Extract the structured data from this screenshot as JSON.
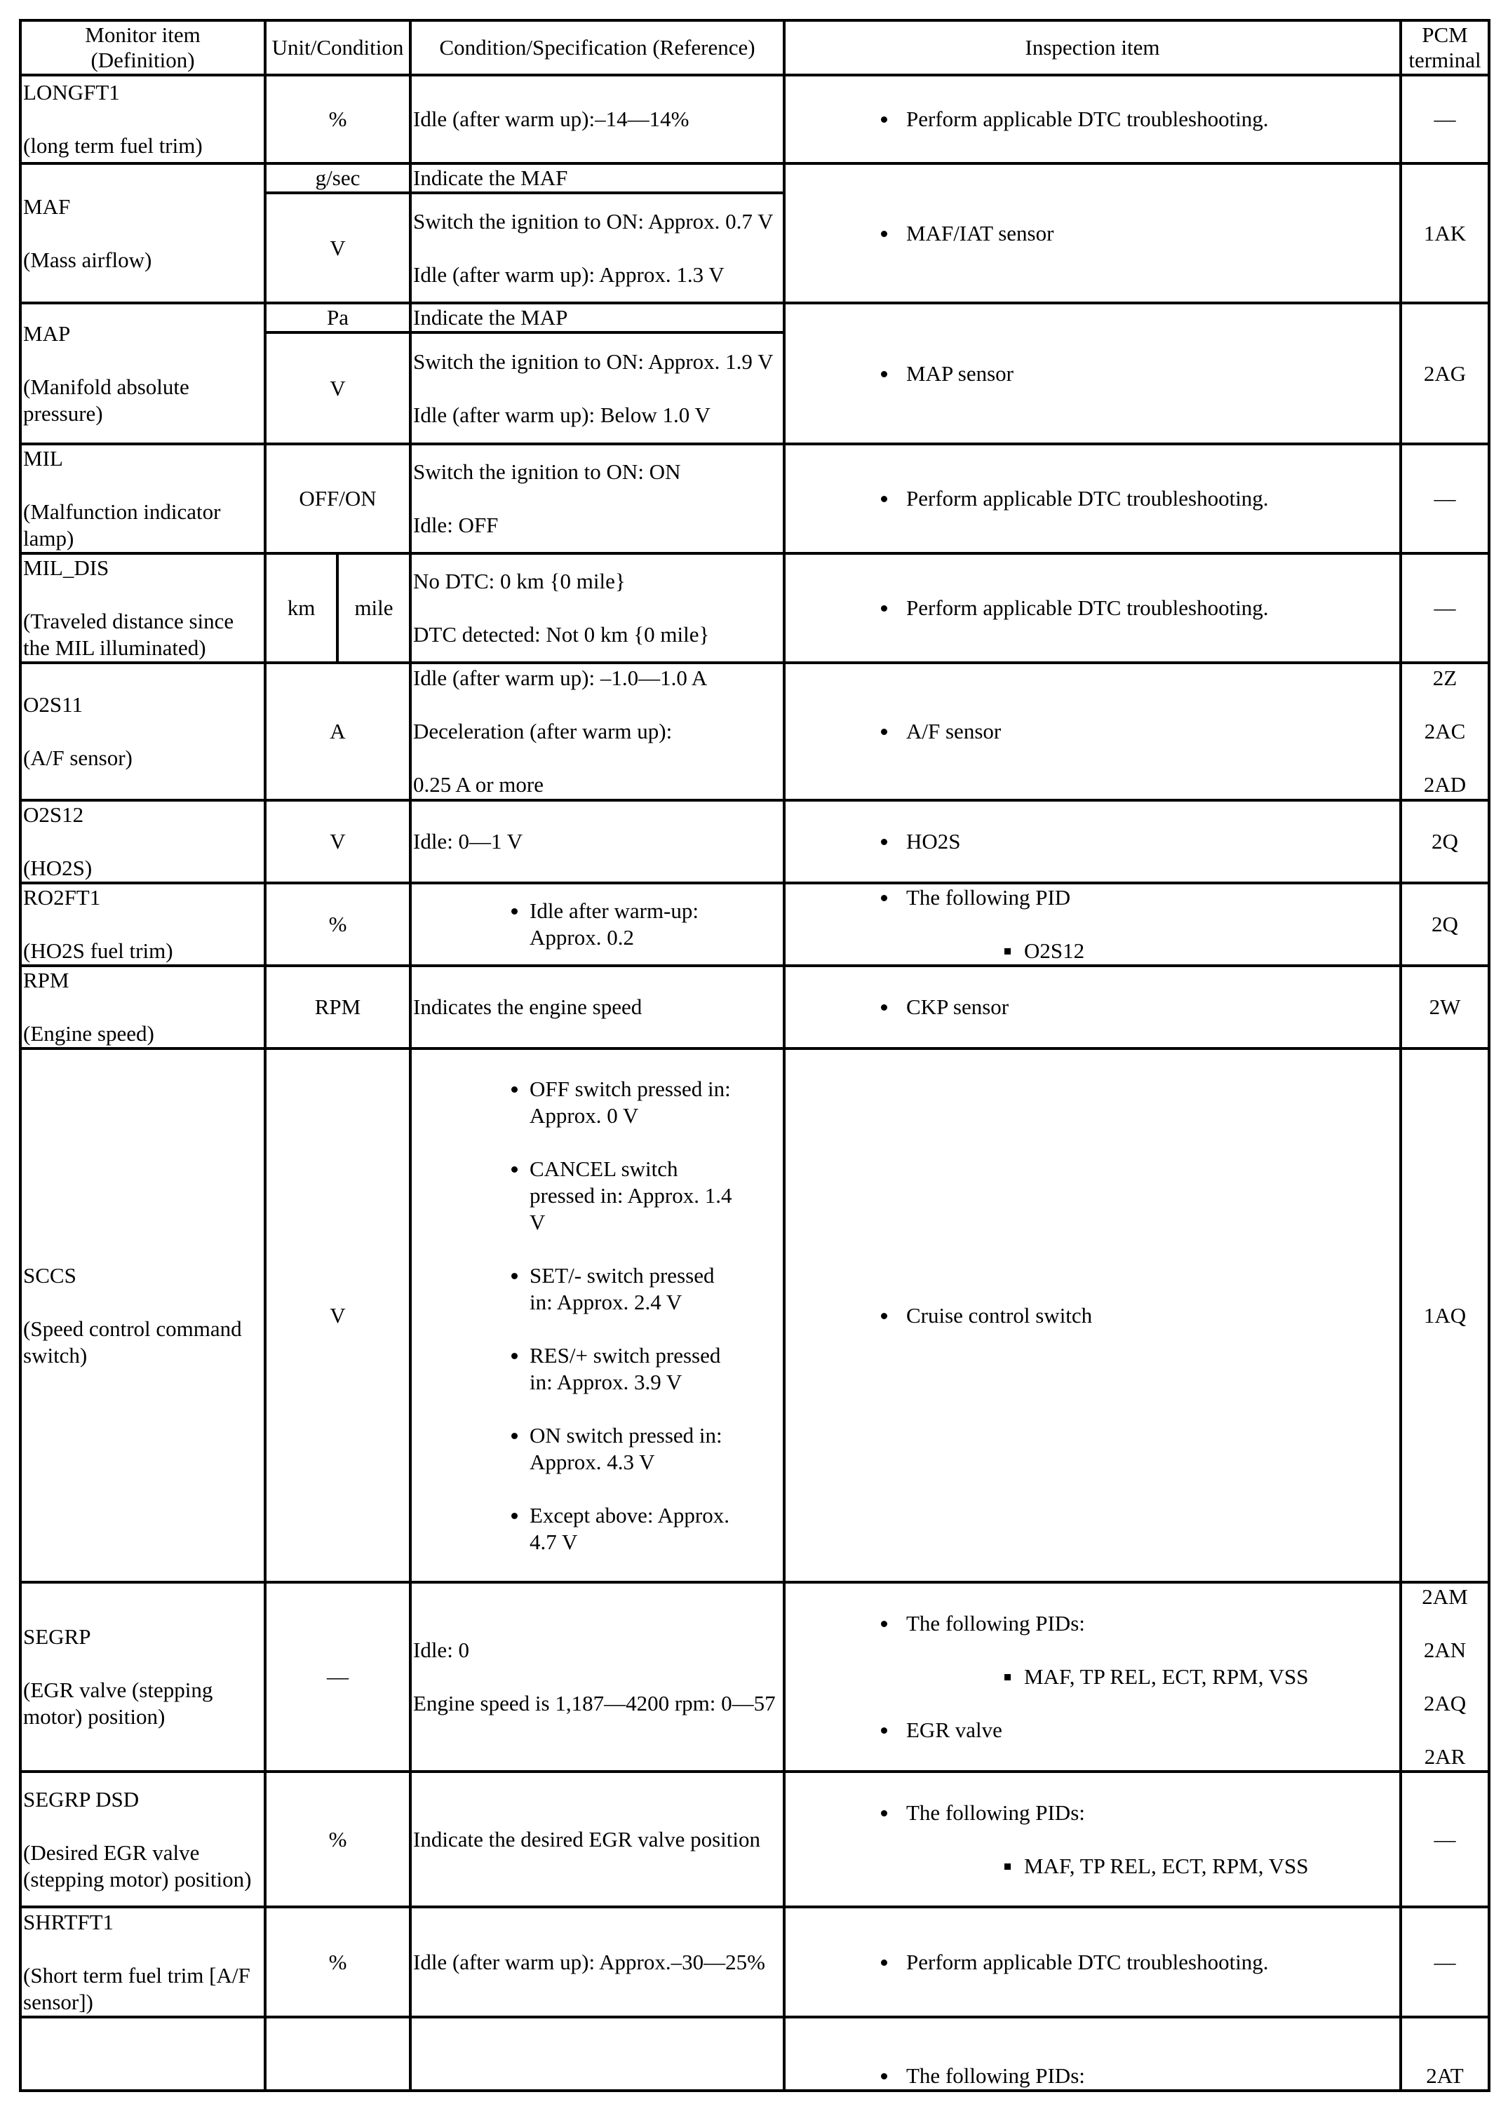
{
  "headers": {
    "monitor_item": "Monitor item",
    "definition": "(Definition)",
    "unit": "Unit/Condition",
    "condition": "Condition/Specification (Reference)",
    "inspection": "Inspection item",
    "pcm1": "PCM",
    "pcm2": "terminal"
  },
  "rows": [
    {
      "name": "LONGFT1",
      "def": "(long term fuel trim)",
      "units": [
        "%"
      ],
      "cond": [
        {
          "type": "text",
          "lines": [
            "Idle (after warm up):–14—14%"
          ]
        }
      ],
      "insp": [
        {
          "b": "Perform applicable DTC troubleshooting."
        }
      ],
      "pcm": [
        "—"
      ]
    },
    {
      "name": "MAF",
      "def": "(Mass airflow)",
      "units": [
        "g/sec",
        "V"
      ],
      "cond": [
        {
          "type": "text",
          "lines": [
            "Indicate the MAF"
          ]
        },
        {
          "type": "text",
          "lines": [
            "Switch the ignition to ON: Approx. 0.7 V",
            "Idle (after warm up): Approx. 1.3 V"
          ]
        }
      ],
      "insp": [
        {
          "b": "MAF/IAT sensor"
        }
      ],
      "pcm": [
        "1AK"
      ]
    },
    {
      "name": "MAP",
      "def": "(Manifold absolute pressure)",
      "units": [
        "Pa",
        "V"
      ],
      "cond": [
        {
          "type": "text",
          "lines": [
            "Indicate the MAP"
          ]
        },
        {
          "type": "text",
          "lines": [
            "Switch the ignition to ON: Approx. 1.9 V",
            "Idle (after warm up): Below 1.0 V"
          ]
        }
      ],
      "insp": [
        {
          "b": "MAP sensor"
        }
      ],
      "pcm": [
        "2AG"
      ]
    },
    {
      "name": "MIL",
      "def": "(Malfunction indicator lamp)",
      "units": [
        "OFF/ON"
      ],
      "cond": [
        {
          "type": "text",
          "lines": [
            "Switch the ignition to ON: ON",
            "Idle: OFF"
          ]
        }
      ],
      "insp": [
        {
          "b": "Perform applicable DTC troubleshooting."
        }
      ],
      "pcm": [
        "—"
      ]
    },
    {
      "name": "MIL_DIS",
      "def": "(Traveled distance since the MIL illuminated)",
      "units": [
        "km",
        "mile"
      ],
      "split": true,
      "cond": [
        {
          "type": "text",
          "lines": [
            "No DTC: 0 km {0 mile}",
            "DTC detected: Not 0 km {0 mile}"
          ]
        }
      ],
      "insp": [
        {
          "b": "Perform applicable DTC troubleshooting."
        }
      ],
      "pcm": [
        "—"
      ]
    },
    {
      "name": "O2S11",
      "def": "(A/F sensor)",
      "units": [
        "A"
      ],
      "cond": [
        {
          "type": "text",
          "lines": [
            "Idle (after warm up): –1.0—1.0 A",
            "Deceleration (after warm up):",
            "0.25 A or more"
          ]
        }
      ],
      "insp": [
        {
          "b": "A/F sensor"
        }
      ],
      "pcm": [
        "2Z",
        "2AC",
        "2AD"
      ]
    },
    {
      "name": "O2S12",
      "def": "(HO2S)",
      "units": [
        "V"
      ],
      "cond": [
        {
          "type": "text",
          "lines": [
            "Idle: 0—1 V"
          ]
        }
      ],
      "insp": [
        {
          "b": "HO2S"
        }
      ],
      "pcm": [
        "2Q"
      ]
    },
    {
      "name": "RO2FT1",
      "def": "(HO2S fuel trim)",
      "units": [
        "%"
      ],
      "cond": [
        {
          "type": "bullets",
          "lines": [
            "Idle after warm-up: Approx. 0.2"
          ]
        }
      ],
      "insp": [
        {
          "b": "The following PID",
          "sub": "O2S12"
        }
      ],
      "pcm": [
        "2Q"
      ]
    },
    {
      "name": "RPM",
      "def": "(Engine speed)",
      "units": [
        "RPM"
      ],
      "cond": [
        {
          "type": "text",
          "lines": [
            "Indicates the engine speed"
          ]
        }
      ],
      "insp": [
        {
          "b": "CKP sensor"
        }
      ],
      "pcm": [
        "2W"
      ]
    },
    {
      "name": "SCCS",
      "def": "(Speed control command switch)",
      "units": [
        "V"
      ],
      "cond": [
        {
          "type": "bullets",
          "lines": [
            "OFF switch pressed in: Approx. 0 V",
            "CANCEL switch pressed in: Approx. 1.4 V",
            "SET/- switch pressed in: Approx. 2.4 V",
            "RES/+ switch pressed in: Approx. 3.9 V",
            "ON switch pressed in: Approx. 4.3 V",
            "Except above: Approx. 4.7 V"
          ]
        }
      ],
      "insp": [
        {
          "b": "Cruise control switch"
        }
      ],
      "pcm": [
        "1AQ"
      ]
    },
    {
      "name": "SEGRP",
      "def": "(EGR valve (stepping motor) position)",
      "units": [
        "—"
      ],
      "cond": [
        {
          "type": "text",
          "lines": [
            "Idle: 0",
            "Engine speed is 1,187—4200 rpm: 0—57"
          ]
        }
      ],
      "insp": [
        {
          "b": "The following PIDs:",
          "sub": "MAF, TP REL, ECT, RPM, VSS"
        },
        {
          "b": "EGR valve"
        }
      ],
      "pcm": [
        "2AM",
        "2AN",
        "2AQ",
        "2AR"
      ]
    },
    {
      "name": "SEGRP DSD",
      "def": "(Desired EGR valve (stepping motor) position)",
      "units": [
        "%"
      ],
      "cond": [
        {
          "type": "text",
          "lines": [
            "Indicate the desired EGR valve position"
          ]
        }
      ],
      "insp": [
        {
          "b": "The following PIDs:",
          "sub": "MAF, TP REL, ECT, RPM, VSS"
        }
      ],
      "pcm": [
        "—"
      ]
    },
    {
      "name": "SHRTFT1",
      "def": "(Short term fuel trim [A/F sensor])",
      "units": [
        "%"
      ],
      "cond": [
        {
          "type": "text",
          "lines": [
            "Idle (after warm up): Approx.–30—25%"
          ]
        }
      ],
      "insp": [
        {
          "b": "Perform applicable DTC troubleshooting."
        }
      ],
      "pcm": [
        "—"
      ]
    },
    {
      "name": "",
      "def": "",
      "units": [
        ""
      ],
      "cond": [
        {
          "type": "text",
          "lines": []
        }
      ],
      "insp": [
        {
          "b": "The following PIDs:"
        }
      ],
      "pcm": [
        "2AT"
      ],
      "bottom": true
    }
  ]
}
